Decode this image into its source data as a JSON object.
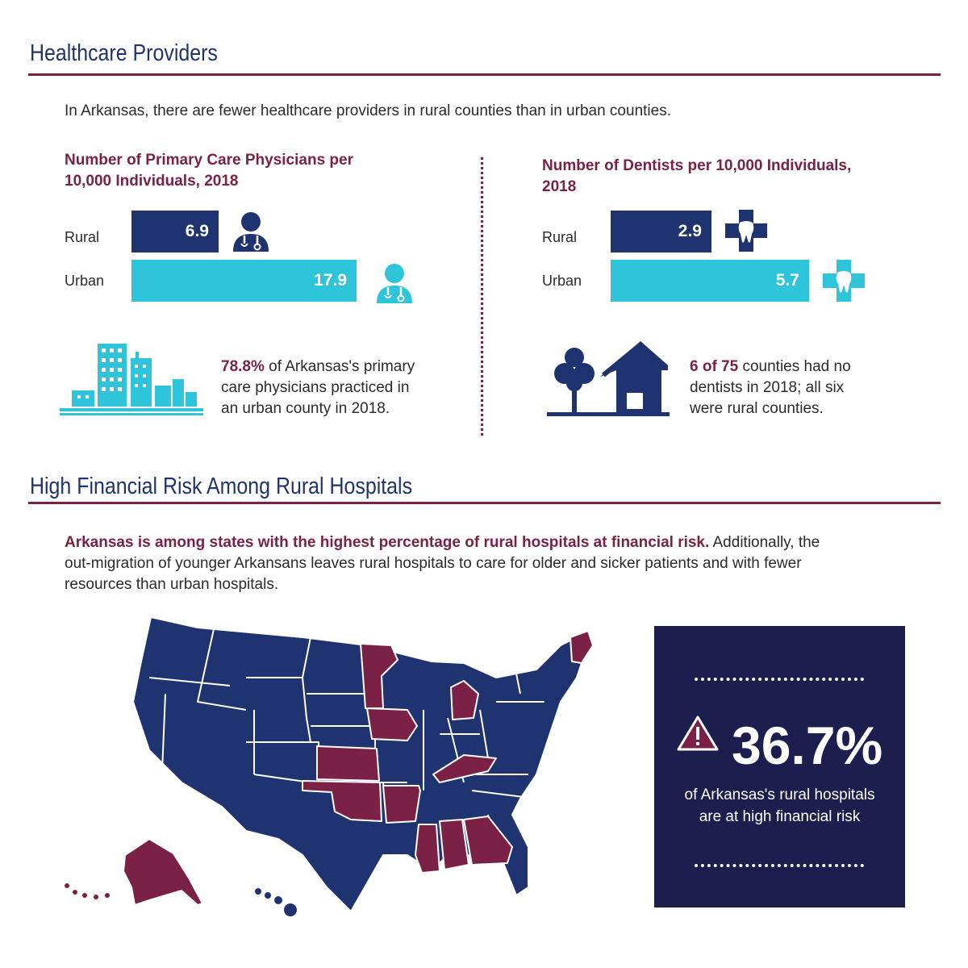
{
  "section1": {
    "title": "Healthcare Providers",
    "intro": "In Arkansas, there are fewer healthcare providers in rural counties than in urban counties."
  },
  "section2": {
    "title": "High Financial Risk Among Rural Hospitals",
    "paragraph_bold": "Arkansas is among states with the highest percentage of rural hospitals at financial risk.",
    "paragraph_rest_line1": " Additionally, the",
    "paragraph_line2": "out-migration of younger Arkansans leaves rural hospitals to care for older and sicker patients and with fewer",
    "paragraph_line3": "resources than urban hospitals."
  },
  "physician_note": {
    "highlight": "78.8%",
    "line1": " of Arkansas's primary",
    "line2": "care physicians practiced in",
    "line3": "an urban county in 2018."
  },
  "dentist_note": {
    "highlight": "6 of 75",
    "line1": " counties had no",
    "line2": "dentists in 2018; all six",
    "line3": "were rural counties."
  },
  "stat": {
    "value": "36.7%",
    "caption_line1": "of Arkansas's rural hospitals",
    "caption_line2": "are at high financial risk"
  },
  "icons": {
    "physician": "doctor-icon",
    "dentist": "tooth-cross-icon",
    "city": "city-buildings-icon",
    "rural": "tree-house-icon",
    "warning": "warning-triangle-icon"
  },
  "colors": {
    "navy": "#1f3370",
    "teal": "#2ec4d9",
    "maroon": "#7b2145",
    "dark_box": "#1c1f4e",
    "state_default": "#1f3370",
    "state_highlight": "#7b2145"
  },
  "chart_data": [
    {
      "type": "bar",
      "title_line1": "Number of Primary Care Physicians per",
      "title_line2": "10,000 Individuals, 2018",
      "categories": [
        "Rural",
        "Urban"
      ],
      "values": [
        6.9,
        17.9
      ],
      "value_labels": [
        "6.9",
        "17.9"
      ],
      "colors": [
        "#1f3370",
        "#2ec4d9"
      ]
    },
    {
      "type": "bar",
      "title_line1": "Number of Dentists per 10,000 Individuals,",
      "title_line2": "2018",
      "categories": [
        "Rural",
        "Urban"
      ],
      "values": [
        2.9,
        5.7
      ],
      "value_labels": [
        "2.9",
        "5.7"
      ],
      "colors": [
        "#1f3370",
        "#2ec4d9"
      ]
    }
  ],
  "map": {
    "highlighted_states": [
      "Alaska",
      "Minnesota",
      "Iowa",
      "Kansas",
      "Oklahoma",
      "Arkansas",
      "Mississippi",
      "Alabama",
      "Georgia",
      "Kentucky",
      "Michigan",
      "Maine"
    ]
  }
}
